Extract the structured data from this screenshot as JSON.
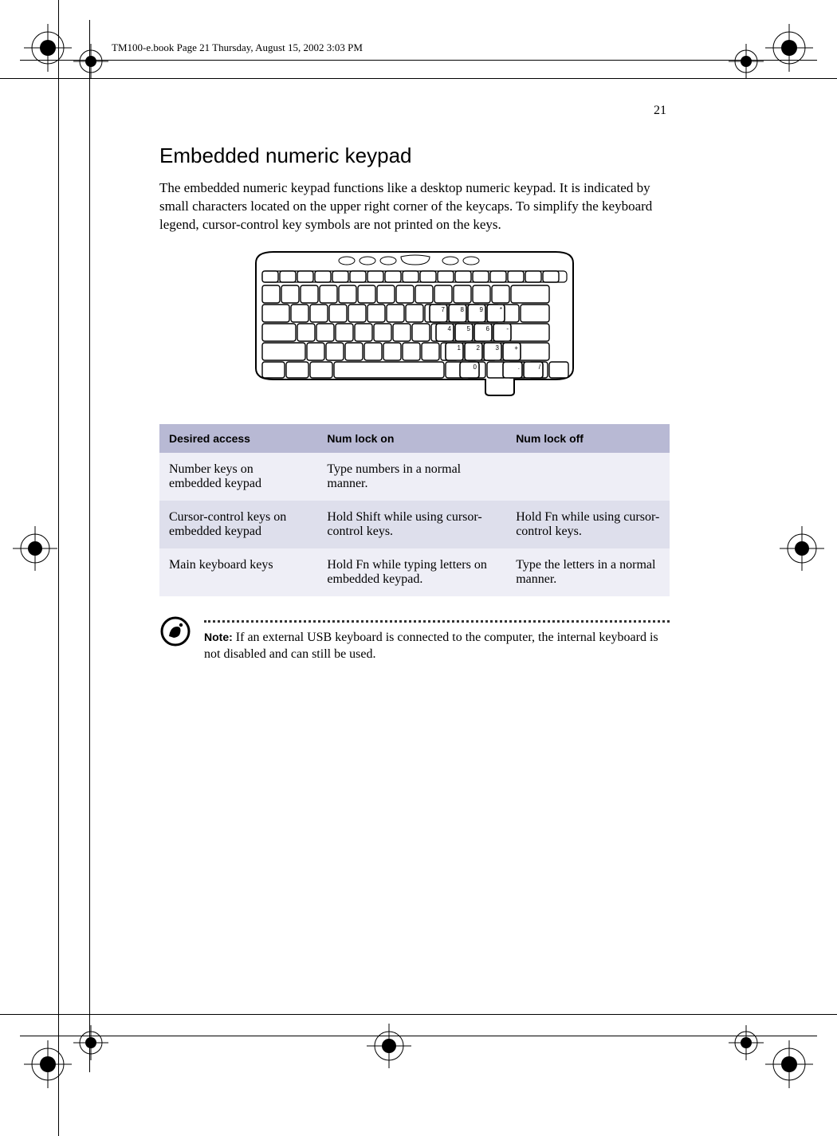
{
  "runner": "TM100-e.book  Page 21  Thursday, August 15, 2002  3:03 PM",
  "page_number": "21",
  "title": "Embedded numeric keypad",
  "intro": "The embedded numeric keypad functions like a desktop numeric keypad.  It is indicated by small characters located on the upper right corner of the keycaps.  To simplify the keyboard legend, cursor-control key symbols are not printed on the keys.",
  "table": {
    "header_bg": "#b8b9d4",
    "row_a_bg": "#eeeef6",
    "row_b_bg": "#dedfec",
    "columns": [
      "Desired access",
      "Num lock on",
      "Num lock off"
    ],
    "rows": [
      {
        "bg": "row-a",
        "cells": [
          "Number keys on embedded keypad",
          "Type numbers in a normal manner.",
          ""
        ]
      },
      {
        "bg": "row-b",
        "cells": [
          "Cursor-control keys on embedded keypad",
          "Hold Shift while using cursor-control keys.",
          "Hold Fn while using cursor-control keys."
        ]
      },
      {
        "bg": "row-a",
        "cells": [
          "Main keyboard keys",
          "Hold Fn while typing letters on embedded keypad.",
          "Type the letters in a normal manner."
        ]
      }
    ]
  },
  "note_label": "Note:",
  "note_body": "  If an external USB keyboard is connected to the computer, the internal keyboard is not disabled and can still be used.",
  "keypad_labels": {
    "row1": [
      "7",
      "8",
      "9",
      "*"
    ],
    "row2": [
      "4",
      "5",
      "6",
      "-"
    ],
    "row3": [
      "1",
      "2",
      "3",
      "+"
    ],
    "row4": [
      "0",
      ".",
      "/"
    ]
  }
}
